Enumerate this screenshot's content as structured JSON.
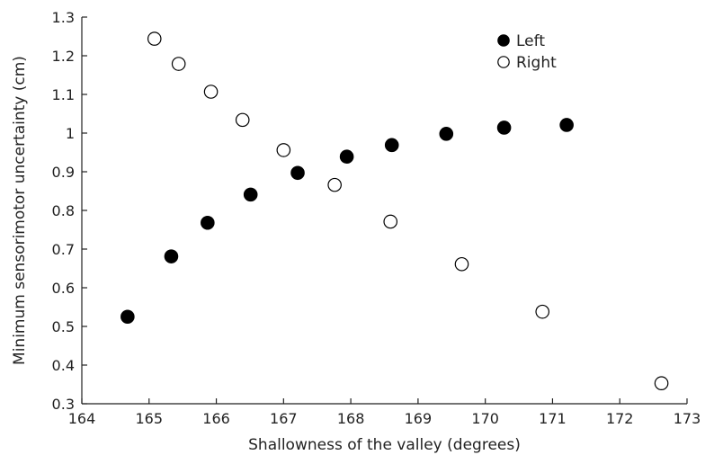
{
  "chart_data": {
    "type": "scatter",
    "xlabel": "Shallowness of the valley (degrees)",
    "ylabel": "Minimum sensorimotor uncertainty (cm)",
    "xlim": [
      164,
      173
    ],
    "ylim": [
      0.3,
      1.3
    ],
    "xticks": [
      164,
      165,
      166,
      167,
      168,
      169,
      170,
      171,
      172,
      173
    ],
    "yticks": [
      0.3,
      0.4,
      0.5,
      0.6,
      0.7,
      0.8,
      0.9,
      1,
      1.1,
      1.2,
      1.3
    ],
    "ytick_labels": [
      "0.3",
      "0.4",
      "0.5",
      "0.6",
      "0.7",
      "0.8",
      "0.9",
      "1",
      "1.1",
      "1.2",
      "1.3"
    ],
    "grid": false,
    "legend_position": "top-right",
    "series": [
      {
        "name": "Left",
        "marker": "filled-circle",
        "color": "#000000",
        "points": [
          {
            "x": 164.68,
            "y": 0.525
          },
          {
            "x": 165.33,
            "y": 0.681
          },
          {
            "x": 165.87,
            "y": 0.768
          },
          {
            "x": 166.51,
            "y": 0.841
          },
          {
            "x": 167.21,
            "y": 0.897
          },
          {
            "x": 167.94,
            "y": 0.939
          },
          {
            "x": 168.61,
            "y": 0.969
          },
          {
            "x": 169.42,
            "y": 0.998
          },
          {
            "x": 170.28,
            "y": 1.014
          },
          {
            "x": 171.21,
            "y": 1.021
          }
        ]
      },
      {
        "name": "Right",
        "marker": "open-circle",
        "color": "#000000",
        "points": [
          {
            "x": 165.08,
            "y": 1.244
          },
          {
            "x": 165.44,
            "y": 1.179
          },
          {
            "x": 165.92,
            "y": 1.107
          },
          {
            "x": 166.39,
            "y": 1.034
          },
          {
            "x": 167.0,
            "y": 0.956
          },
          {
            "x": 167.76,
            "y": 0.866
          },
          {
            "x": 168.59,
            "y": 0.771
          },
          {
            "x": 169.65,
            "y": 0.661
          },
          {
            "x": 170.85,
            "y": 0.538
          },
          {
            "x": 172.62,
            "y": 0.353
          }
        ]
      }
    ]
  }
}
